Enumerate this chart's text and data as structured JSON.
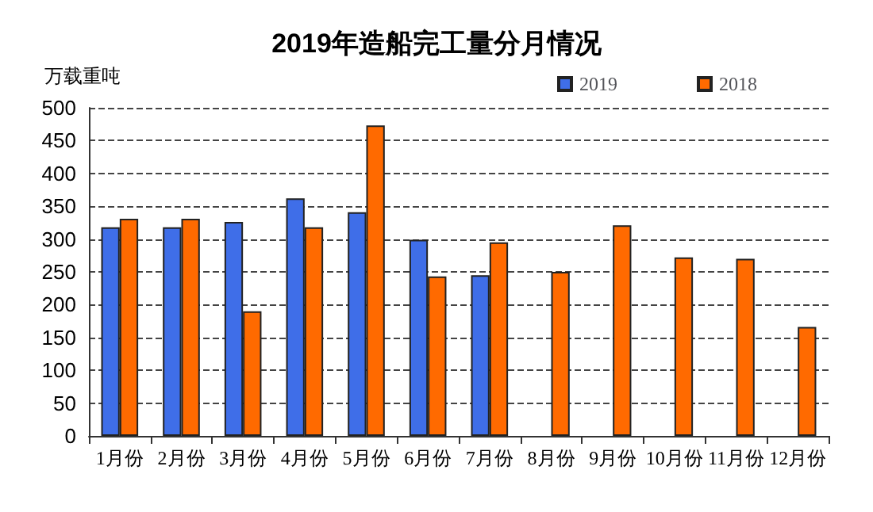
{
  "chart_data": {
    "type": "bar",
    "title": "2019年造船完工量分月情况",
    "ylabel": "万载重吨",
    "categories": [
      "1月份",
      "2月份",
      "3月份",
      "4月份",
      "5月份",
      "6月份",
      "7月份",
      "8月份",
      "9月份",
      "10月份",
      "11月份",
      "12月份"
    ],
    "series": [
      {
        "name": "2019",
        "color": "#3f6ee8",
        "values": [
          318,
          318,
          326,
          362,
          341,
          299,
          245,
          null,
          null,
          null,
          null,
          null
        ]
      },
      {
        "name": "2018",
        "color": "#ff6a00",
        "values": [
          331,
          331,
          190,
          318,
          473,
          243,
          295,
          250,
          321,
          272,
          270,
          166
        ]
      }
    ],
    "ylim": [
      0,
      500
    ],
    "yticks": [
      0,
      50,
      100,
      150,
      200,
      250,
      300,
      350,
      400,
      450,
      500
    ],
    "grid": "y",
    "legend": "top right"
  }
}
